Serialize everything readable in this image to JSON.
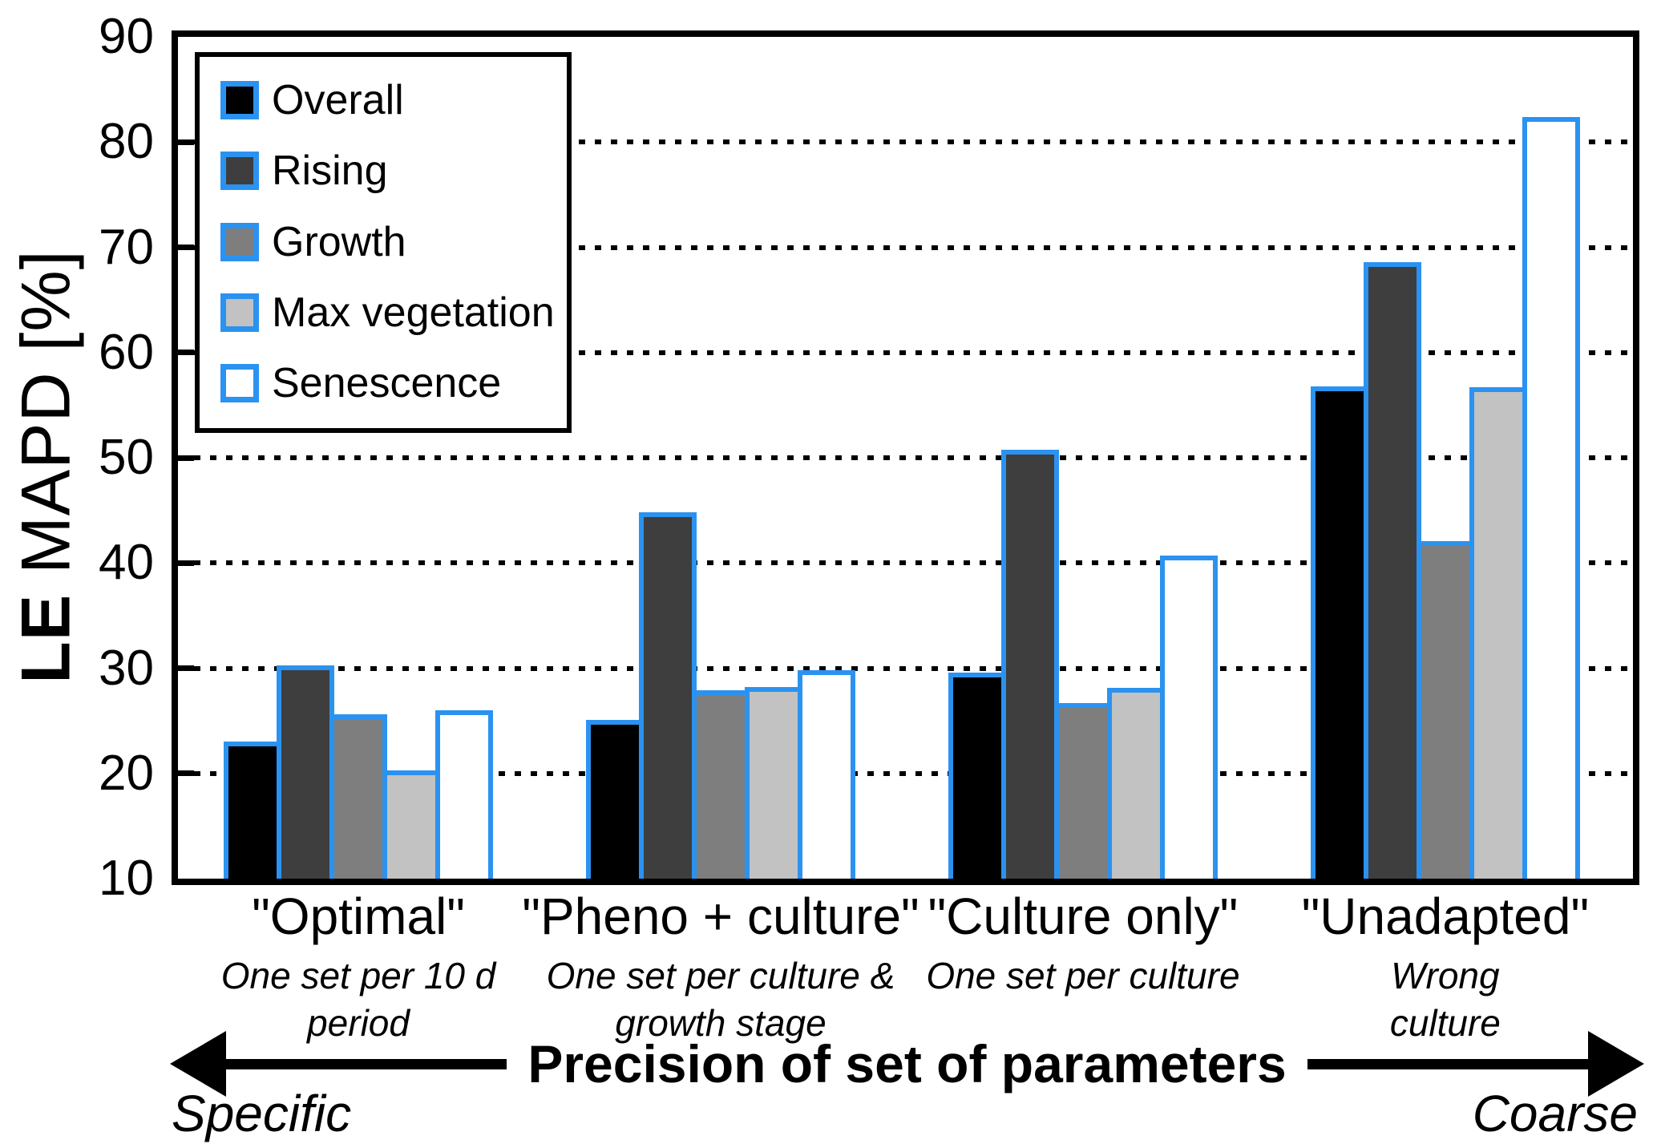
{
  "ylabel": {
    "bold": "LE",
    "rest": " MAPD [%]"
  },
  "chart_data": {
    "type": "bar",
    "title": "",
    "ylabel": "LE MAPD [%]",
    "ylim": [
      10,
      90
    ],
    "yticks": [
      10,
      20,
      30,
      40,
      50,
      60,
      70,
      80,
      90
    ],
    "grid_values": [
      20,
      30,
      40,
      50,
      60,
      70,
      80
    ],
    "grid": "dotted-horizontal",
    "legend_position": "upper-left",
    "bar_border_color": "#2B92F0",
    "categories": [
      "\"Optimal\"",
      "\"Pheno + culture\"",
      "\"Culture only\"",
      "\"Unadapted\""
    ],
    "category_sublabels": [
      "One set per 10 d\nperiod",
      "One set per culture &\ngrowth stage",
      "One set per culture",
      "Wrong culture"
    ],
    "series": [
      {
        "name": "Overall",
        "color": "#000000",
        "values": [
          23.0,
          25.1,
          29.6,
          56.8
        ]
      },
      {
        "name": "Rising",
        "color": "#3E3E3E",
        "values": [
          30.3,
          44.8,
          50.8,
          68.6
        ]
      },
      {
        "name": "Growth",
        "color": "#7E7E7E",
        "values": [
          25.6,
          27.9,
          26.7,
          42.1
        ]
      },
      {
        "name": "Max vegetation",
        "color": "#C2C2C2",
        "values": [
          20.3,
          28.2,
          28.1,
          56.7
        ]
      },
      {
        "name": "Senescence",
        "color": "#FFFFFF",
        "values": [
          26.0,
          29.8,
          40.7,
          82.4
        ]
      }
    ]
  },
  "x_axis_annotation": {
    "title": "Precision of set of parameters",
    "left_label": "Specific",
    "right_label": "Coarse"
  }
}
